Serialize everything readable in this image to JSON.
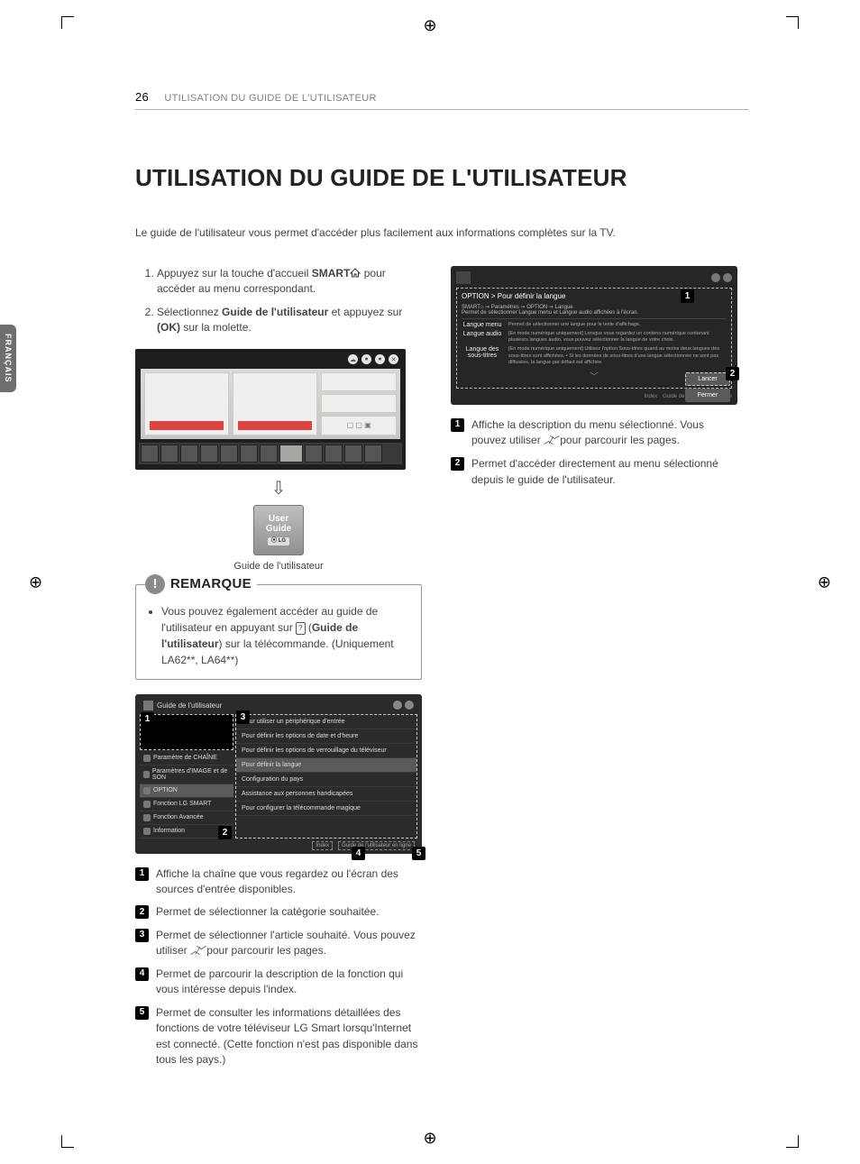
{
  "header": {
    "page_number": "26",
    "section": "UTILISATION DU GUIDE DE L'UTILISATEUR"
  },
  "lang_tab": "FRANÇAIS",
  "title": "UTILISATION DU GUIDE DE L'UTILISATEUR",
  "intro": "Le guide de l'utilisateur vous permet d'accéder plus facilement aux informations complètes sur la TV.",
  "steps": {
    "s1a": "Appuyez sur la touche d'accueil ",
    "s1_smart": "SMART",
    "s1b": " pour accéder au menu correspondant.",
    "s2a": "Sélectionnez ",
    "s2_bold": "Guide de l'utilisateur",
    "s2b": " et appuyez sur ",
    "s2_ok": "(OK)",
    "s2c": " sur la molette."
  },
  "user_guide_tile": {
    "line1": "User",
    "line2": "Guide",
    "brand": "⦿ LG"
  },
  "ug_caption": "Guide de l'utilisateur",
  "remarque": {
    "label": "REMARQUE",
    "text_a": "Vous pouvez également accéder au guide de l'utilisateur en appuyant sur ",
    "text_icon": "?",
    "text_b": " (",
    "text_bold": "Guide de l'utilisateur",
    "text_c": ") sur la télécommande. (Uniquement  LA62**, LA64**)"
  },
  "guide_shot": {
    "title": "Guide de l'utilisateur",
    "cats": [
      "Paramètre de CHAÎNE",
      "Paramètres d'IMAGE et de SON",
      "OPTION",
      "Fonction LG SMART",
      "Fonction Avancée",
      "Information"
    ],
    "cat_selected_index": 2,
    "items": [
      "Pour utiliser un périphérique d'entrée",
      "Pour définir les options de date et d'heure",
      "Pour définir les options de verrouillage du téléviseur",
      "Pour définir la langue",
      "Configuration du pays",
      "Assistance aux personnes handicapées",
      "Pour configurer la télécommande magique"
    ],
    "item_selected_index": 3,
    "foot_index": "Index",
    "foot_online": "Guide de l'utilisateur en ligne"
  },
  "legend_left": {
    "l1": "Affiche la chaîne que vous regardez ou l'écran des sources d'entrée disponibles.",
    "l2": "Permet de sélectionner la catégorie souhaitée.",
    "l3a": "Permet de sélectionner l'article souhaité. Vous pouvez utiliser ",
    "l3b": " pour parcourir les pages.",
    "l4": "Permet de parcourir la description de la fonction qui vous intéresse depuis l'index.",
    "l5": "Permet de consulter les informations détaillées des fonctions de votre téléviseur LG Smart lorsqu'Internet est connecté. (Cette fonction n'est pas disponible dans tous les pays.)"
  },
  "option_shot": {
    "breadcrumb": "OPTION > Pour définir la langue",
    "path": "SMART⌂ ➙ Paramètres ➙ OPTION ➙ Langue",
    "desc": "Permet de sélectionner Langue menu et Langue audio affichées à l'écran.",
    "rows": [
      {
        "label": "Langue menu",
        "text": "Permet de sélectionner une langue pour le texte d'affichage."
      },
      {
        "label": "Langue audio",
        "text": "[En mode numérique uniquement] Lorsque vous regardez un contenu numérique contenant plusieurs langues audio, vous pouvez sélectionner la langue de votre choix."
      },
      {
        "label": "Langue des sous-titres",
        "text": "[En mode numérique uniquement] Utilisez l'option Sous-titres quand au moins deux langues des sous-titres sont affichées. • Si les données de sous-titres d'une langue sélectionnée ne sont pas diffusées, la langue par défaut est affichée."
      }
    ],
    "btn_launch": "Lancer",
    "btn_close": "Fermer",
    "foot_index": "Index",
    "foot_online": "Guide de l'utilisateur en ligne"
  },
  "legend_right": {
    "r1a": "Affiche la description du menu sélectionné. Vous pouvez utiliser ",
    "r1b": " pour parcourir les pages.",
    "r2": "Permet d'accéder directement au menu sélectionné depuis le guide de l'utilisateur."
  },
  "badges": {
    "n1": "1",
    "n2": "2",
    "n3": "3",
    "n4": "4",
    "n5": "5"
  },
  "colors": {
    "text_grey": "#808080",
    "border_grey": "#b0b0b0",
    "dark_bg": "#2b2b2b",
    "badge_bg": "#000000"
  }
}
